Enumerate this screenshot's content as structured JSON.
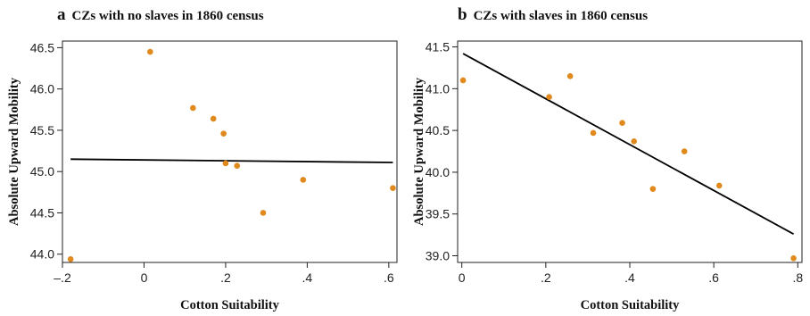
{
  "chart_data": [
    {
      "type": "scatter",
      "panel_letter": "a",
      "title": "CZs with no slaves in 1860 census",
      "xlabel": "Cotton Suitability",
      "ylabel": "Absolute Upward Mobility",
      "xlim": [
        -0.2,
        0.62
      ],
      "ylim": [
        43.9,
        46.58
      ],
      "x_ticks": [
        -0.2,
        0,
        0.2,
        0.4,
        0.6
      ],
      "x_tick_labels": [
        "–.2",
        "0",
        ".2",
        ".4",
        ".6"
      ],
      "y_ticks": [
        44.0,
        44.5,
        45.0,
        45.5,
        46.0,
        46.5
      ],
      "y_tick_labels": [
        "44.0",
        "44.5",
        "45.0",
        "45.5",
        "46.0",
        "46.5"
      ],
      "points": [
        {
          "x": -0.18,
          "y": 43.94
        },
        {
          "x": 0.015,
          "y": 46.45
        },
        {
          "x": 0.12,
          "y": 45.77
        },
        {
          "x": 0.17,
          "y": 45.64
        },
        {
          "x": 0.195,
          "y": 45.46
        },
        {
          "x": 0.2,
          "y": 45.1
        },
        {
          "x": 0.228,
          "y": 45.07
        },
        {
          "x": 0.292,
          "y": 44.5
        },
        {
          "x": 0.39,
          "y": 44.9
        },
        {
          "x": 0.61,
          "y": 44.8
        }
      ],
      "fit_line": {
        "x": [
          -0.18,
          0.61
        ],
        "y": [
          45.15,
          45.11
        ]
      },
      "point_color": "#e08a1e",
      "line_color": "#000000",
      "grid": false,
      "legend": "none"
    },
    {
      "type": "scatter",
      "panel_letter": "b",
      "title": "CZs with slaves in 1860 census",
      "xlabel": "Cotton Suitability",
      "ylabel": "Absolute Upward Mobility",
      "xlim": [
        -0.01,
        0.81
      ],
      "ylim": [
        38.92,
        41.57
      ],
      "x_ticks": [
        0,
        0.2,
        0.4,
        0.6,
        0.8
      ],
      "x_tick_labels": [
        "0",
        ".2",
        ".4",
        ".6",
        ".8"
      ],
      "y_ticks": [
        39.0,
        39.5,
        40.0,
        40.5,
        41.0,
        41.5
      ],
      "y_tick_labels": [
        "39.0",
        "39.5",
        "40.0",
        "40.5",
        "41.0",
        "41.5"
      ],
      "points": [
        {
          "x": 0.003,
          "y": 41.1
        },
        {
          "x": 0.208,
          "y": 40.9
        },
        {
          "x": 0.258,
          "y": 41.15
        },
        {
          "x": 0.313,
          "y": 40.47
        },
        {
          "x": 0.382,
          "y": 40.59
        },
        {
          "x": 0.41,
          "y": 40.37
        },
        {
          "x": 0.455,
          "y": 39.8
        },
        {
          "x": 0.53,
          "y": 40.25
        },
        {
          "x": 0.613,
          "y": 39.84
        },
        {
          "x": 0.79,
          "y": 38.97
        }
      ],
      "fit_line": {
        "x": [
          0.003,
          0.79
        ],
        "y": [
          41.42,
          39.26
        ]
      },
      "point_color": "#e08a1e",
      "line_color": "#000000",
      "grid": false,
      "legend": "none"
    }
  ]
}
